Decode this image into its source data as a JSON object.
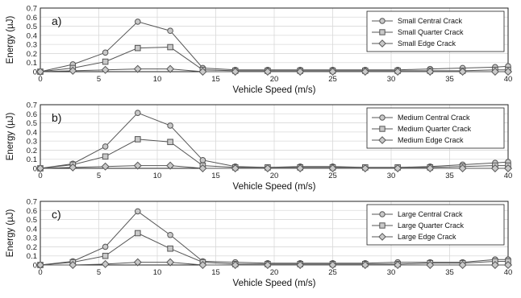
{
  "colors": {
    "line": "#555555",
    "marker_fill": "#c9c9c9",
    "grid": "#d9d9d9",
    "axis": "#222222"
  },
  "chart_data": [
    {
      "type": "line",
      "panel_label": "a)",
      "xlabel": "Vehicle Speed (m/s)",
      "ylabel": "Energy (µJ)",
      "xlim": [
        0,
        40
      ],
      "ylim": [
        0,
        0.7
      ],
      "xticks": [
        "0",
        "5",
        "10",
        "15",
        "20",
        "25",
        "30",
        "35",
        "40"
      ],
      "yticks": [
        "0",
        "0.1",
        "0.2",
        "0.3",
        "0.4",
        "0.5",
        "0.6",
        "0.7"
      ],
      "grid": true,
      "legend": "top-right",
      "x": [
        0,
        2.78,
        5.56,
        8.33,
        11.11,
        13.89,
        16.67,
        19.44,
        22.22,
        25,
        27.78,
        30.56,
        33.33,
        36.11,
        38.89,
        40
      ],
      "series": [
        {
          "name": "Small Central Crack",
          "marker": "circle",
          "values": [
            0,
            0.08,
            0.21,
            0.55,
            0.45,
            0.04,
            0.02,
            0.02,
            0.02,
            0.02,
            0.02,
            0.02,
            0.03,
            0.04,
            0.05,
            0.06
          ]
        },
        {
          "name": "Small Quarter Crack",
          "marker": "square",
          "values": [
            0,
            0.04,
            0.11,
            0.26,
            0.27,
            0.02,
            0.01,
            0.01,
            0.01,
            0.01,
            0.01,
            0.01,
            0.01,
            0.01,
            0.02,
            0.02
          ]
        },
        {
          "name": "Small Edge Crack",
          "marker": "diamond",
          "values": [
            0,
            0.01,
            0.02,
            0.03,
            0.03,
            0.0,
            0.0,
            0.0,
            0.0,
            0.0,
            0.0,
            0.0,
            0.0,
            0.0,
            0.0,
            0.0
          ]
        }
      ]
    },
    {
      "type": "line",
      "panel_label": "b)",
      "xlabel": "Vehicle Speed (m/s)",
      "ylabel": "Energy (µJ)",
      "xlim": [
        0,
        40
      ],
      "ylim": [
        0,
        0.7
      ],
      "xticks": [
        "0",
        "5",
        "10",
        "15",
        "20",
        "25",
        "30",
        "35",
        "40"
      ],
      "yticks": [
        "0",
        "0.1",
        "0.2",
        "0.3",
        "0.4",
        "0.5",
        "0.6",
        "0.7"
      ],
      "grid": true,
      "legend": "top-right",
      "x": [
        0,
        2.78,
        5.56,
        8.33,
        11.11,
        13.89,
        16.67,
        19.44,
        22.22,
        25,
        27.78,
        30.56,
        33.33,
        36.11,
        38.89,
        40
      ],
      "series": [
        {
          "name": "Medium Central Crack",
          "marker": "circle",
          "values": [
            0,
            0.05,
            0.24,
            0.61,
            0.47,
            0.09,
            0.02,
            0.01,
            0.02,
            0.02,
            0.01,
            0.01,
            0.02,
            0.04,
            0.06,
            0.07
          ]
        },
        {
          "name": "Medium Quarter Crack",
          "marker": "square",
          "values": [
            0,
            0.04,
            0.13,
            0.32,
            0.29,
            0.03,
            0.01,
            0.01,
            0.01,
            0.01,
            0.01,
            0.01,
            0.01,
            0.02,
            0.03,
            0.03
          ]
        },
        {
          "name": "Medium Edge Crack",
          "marker": "diamond",
          "values": [
            0,
            0.01,
            0.02,
            0.03,
            0.03,
            0.0,
            0.0,
            0.0,
            0.0,
            0.0,
            0.0,
            0.0,
            0.0,
            0.0,
            0.0,
            0.0
          ]
        }
      ]
    },
    {
      "type": "line",
      "panel_label": "c)",
      "xlabel": "Vehicle Speed (m/s)",
      "ylabel": "Energy (µJ)",
      "xlim": [
        0,
        40
      ],
      "ylim": [
        0,
        0.7
      ],
      "xticks": [
        "0",
        "5",
        "10",
        "15",
        "20",
        "25",
        "30",
        "35",
        "40"
      ],
      "yticks": [
        "0",
        "0.1",
        "0.2",
        "0.3",
        "0.4",
        "0.5",
        "0.6",
        "0.7"
      ],
      "grid": true,
      "legend": "top-right",
      "x": [
        0,
        2.78,
        5.56,
        8.33,
        11.11,
        13.89,
        16.67,
        19.44,
        22.22,
        25,
        27.78,
        30.56,
        33.33,
        36.11,
        38.89,
        40
      ],
      "series": [
        {
          "name": "Large Central Crack",
          "marker": "circle",
          "values": [
            0,
            0.04,
            0.2,
            0.59,
            0.33,
            0.04,
            0.03,
            0.02,
            0.02,
            0.02,
            0.02,
            0.03,
            0.03,
            0.03,
            0.06,
            0.06
          ]
        },
        {
          "name": "Large Quarter Crack",
          "marker": "square",
          "values": [
            0,
            0.03,
            0.1,
            0.35,
            0.18,
            0.03,
            0.01,
            0.01,
            0.01,
            0.01,
            0.01,
            0.01,
            0.02,
            0.02,
            0.04,
            0.04
          ]
        },
        {
          "name": "Large Edge Crack",
          "marker": "diamond",
          "values": [
            0,
            0.0,
            0.01,
            0.03,
            0.03,
            0.0,
            0.0,
            0.0,
            0.0,
            0.0,
            0.0,
            0.0,
            0.0,
            0.0,
            0.0,
            0.0
          ]
        }
      ]
    }
  ]
}
